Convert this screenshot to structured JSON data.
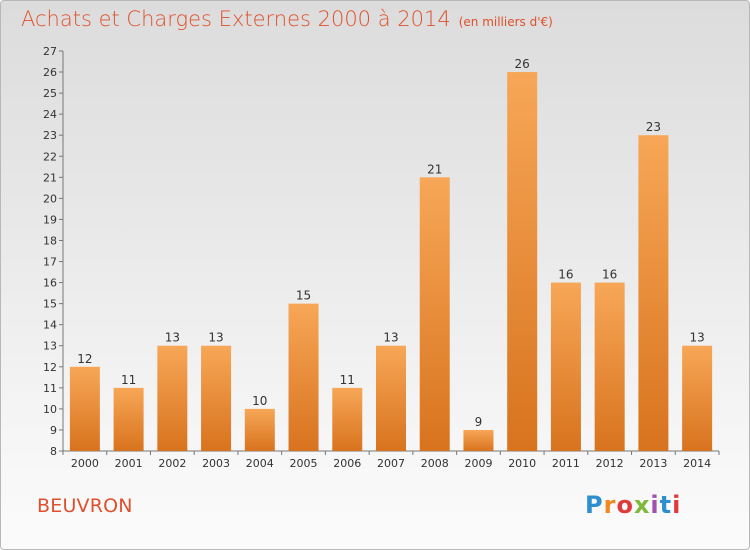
{
  "title": "Achats et Charges Externes 2000 à 2014",
  "unit": "(en milliers d'€)",
  "location": "BEUVRON",
  "logo": {
    "text": "Proxiti",
    "colors": [
      "#2c8fd0",
      "#f08a1e",
      "#e03a3a",
      "#7fb83a",
      "#a34fb0",
      "#2c8fd0",
      "#e03a3a"
    ]
  },
  "chart_data": {
    "type": "bar",
    "categories": [
      "2000",
      "2001",
      "2002",
      "2003",
      "2004",
      "2005",
      "2006",
      "2007",
      "2008",
      "2009",
      "2010",
      "2011",
      "2012",
      "2013",
      "2014"
    ],
    "values": [
      12,
      11,
      13,
      13,
      10,
      15,
      11,
      13,
      21,
      9,
      26,
      16,
      16,
      23,
      13
    ],
    "ylim": [
      8,
      27
    ],
    "yticks": [
      8,
      9,
      10,
      11,
      12,
      13,
      14,
      15,
      16,
      17,
      18,
      19,
      20,
      21,
      22,
      23,
      24,
      25,
      26,
      27
    ],
    "bar_color_top": "#f7a757",
    "bar_color_bottom": "#d8731e",
    "grid": false
  }
}
